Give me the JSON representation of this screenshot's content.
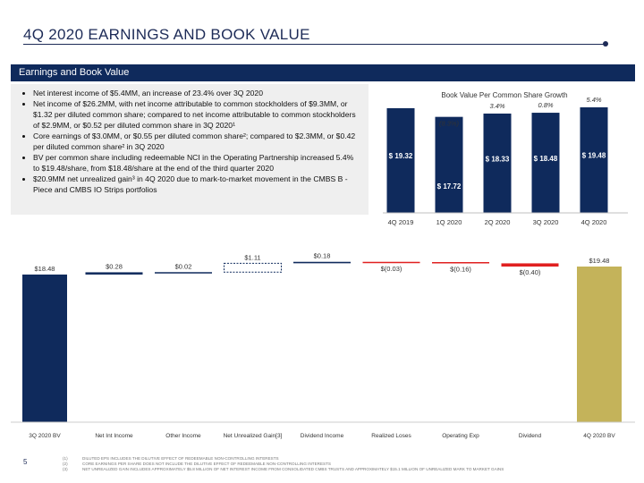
{
  "header": {
    "title": "4Q 2020 EARNINGS AND BOOK VALUE"
  },
  "section": {
    "title": "Earnings and Book Value"
  },
  "bullets": [
    "Net interest income of $5.4MM, an increase of 23.4% over 3Q 2020",
    "Net income of $26.2MM, with net income attributable to common stockholders of $9.3MM, or $1.32 per diluted common share; compared to net income attributable to common stockholders of $2.9MM, or $0.52 per diluted common share in 3Q 2020¹",
    "Core earnings of $3.0MM, or $0.55 per diluted common share²; compared to $2.3MM, or $0.42 per diluted common share² in 3Q 2020",
    "BV per common share including redeemable NCI in the Operating Partnership increased 5.4% to $19.48/share, from $18.48/share at the end of the third quarter 2020",
    "$20.9MM net unrealized gain³ in 4Q 2020 due to mark-to-market movement in the CMBS B -Piece and CMBS IO Strips portfolios"
  ],
  "chart_data": [
    {
      "type": "bar",
      "title": "Book Value Per Common Share Growth",
      "categories": [
        "4Q 2019",
        "1Q 2020",
        "2Q 2020",
        "3Q 2020",
        "4Q 2020"
      ],
      "values": [
        19.32,
        17.72,
        18.33,
        18.48,
        19.48
      ],
      "value_labels": [
        "$ 19.32",
        "$ 17.72",
        "$ 18.33",
        "$ 18.48",
        "$ 19.48"
      ],
      "growth_labels": [
        "",
        "(8.3%)",
        "3.4%",
        "0.8%",
        "5.4%"
      ],
      "colors": {
        "bar": "#0f2a5c",
        "label": "#ffffff"
      }
    },
    {
      "type": "waterfall",
      "categories": [
        "3Q 2020 BV",
        "Net Int Income",
        "Other Income",
        "Net Unrealized Gain[3]",
        "Dividend Income",
        "Realized Loses",
        "Operating Exp",
        "Dividend",
        "4Q 2020 BV"
      ],
      "values": [
        18.48,
        0.28,
        0.02,
        1.11,
        0.18,
        -0.03,
        -0.16,
        -0.4,
        19.48
      ],
      "value_labels": [
        "$18.48",
        "$0.28",
        "$0.02",
        "$1.11",
        "$0.18",
        "$(0.03)",
        "$(0.16)",
        "$(0.40)",
        "$19.48"
      ],
      "kinds": [
        "total",
        "increase",
        "increase",
        "increase",
        "increase",
        "decrease",
        "decrease",
        "decrease",
        "total"
      ],
      "colors": {
        "start": "#0f2a5c",
        "end": "#c4b35a",
        "increase": "#0f2a5c",
        "decrease": "#e02020",
        "text": "#333333"
      }
    }
  ],
  "footnotes": [
    {
      "num": "(1)",
      "text": "DILUTED EPS INCLUDES THE DILUTIVE EFFECT OF REDEEMABLE NON-CONTROLLING INTERESTS"
    },
    {
      "num": "(2)",
      "text": "CORE EARNINGS PER SHARE DOES NOT INCLUDE THE DILUTIVE EFFECT OF REDEEMABLE NON-CONTROLLING INTERESTS"
    },
    {
      "num": "(3)",
      "text": "NET UNREALIZED GAIN INCLUDES APPROXIMATELY $5.8 MILLION OF NET INTEREST INCOME FROM CONSOLIDATED CMBS TRUSTS AND APPROXIMATELY $15.1 MILLION OF UNREALIZED MARK TO MARKET GAINS"
    }
  ],
  "page_number": "5"
}
